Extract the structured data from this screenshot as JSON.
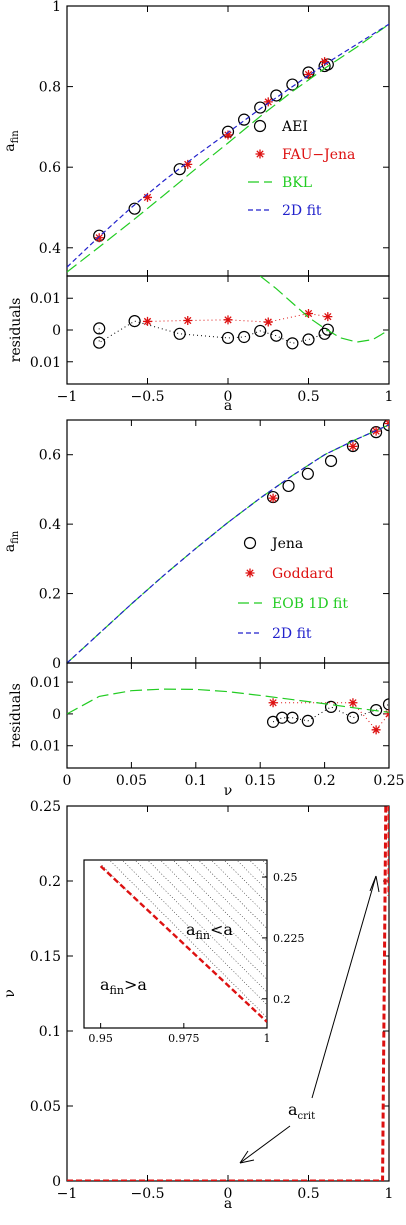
{
  "colors": {
    "black": "#000000",
    "red": "#dd1111",
    "green": "#22cc22",
    "blue": "#2222cc"
  },
  "chart_data": [
    {
      "id": "panel1",
      "type": "scatter",
      "xlim": [
        -1,
        1
      ],
      "ylim": [
        0.33,
        1
      ],
      "yticks": [
        0.4,
        0.6,
        0.8,
        1
      ],
      "ytick_labels": [
        "0.4",
        "0.6",
        "0.8",
        "1"
      ],
      "ylabel": "a_fin",
      "legend_position": "right",
      "series": [
        {
          "name": "AEI",
          "kind": "circles",
          "color": "#000000",
          "x": [
            -0.8,
            -0.58,
            -0.3,
            0.0,
            0.1,
            0.2,
            0.3,
            0.4,
            0.5,
            0.6,
            0.62
          ],
          "y": [
            0.43,
            0.497,
            0.595,
            0.688,
            0.718,
            0.748,
            0.778,
            0.805,
            0.835,
            0.851,
            0.855
          ]
        },
        {
          "name": "FAU−Jena",
          "kind": "stars",
          "color": "#dd1111",
          "x": [
            -0.8,
            -0.5,
            -0.25,
            0.0,
            0.25,
            0.5,
            0.6
          ],
          "y": [
            0.425,
            0.525,
            0.607,
            0.68,
            0.762,
            0.83,
            0.862
          ]
        },
        {
          "name": "BKL",
          "kind": "longdash",
          "color": "#22cc22",
          "x": [
            -1,
            -0.8,
            -0.6,
            -0.4,
            -0.2,
            0,
            0.2,
            0.4,
            0.6,
            0.8,
            1
          ],
          "y": [
            0.34,
            0.402,
            0.465,
            0.53,
            0.596,
            0.66,
            0.726,
            0.788,
            0.845,
            0.898,
            0.955
          ]
        },
        {
          "name": "2D fit",
          "kind": "shortdash",
          "color": "#2222cc",
          "x": [
            -1,
            -0.8,
            -0.6,
            -0.4,
            -0.2,
            0,
            0.2,
            0.4,
            0.6,
            0.8,
            1
          ],
          "y": [
            0.352,
            0.428,
            0.5,
            0.566,
            0.628,
            0.686,
            0.745,
            0.8,
            0.855,
            0.905,
            0.955
          ]
        }
      ]
    },
    {
      "id": "panel1-residuals",
      "type": "scatter",
      "xlim": [
        -1,
        1
      ],
      "ylim": [
        -0.017,
        0.017
      ],
      "xticks": [
        -1,
        -0.5,
        0,
        0.5,
        1
      ],
      "xtick_labels": [
        "−1",
        "−0.5",
        "0",
        "0.5",
        "1"
      ],
      "yticks": [
        0.01,
        0,
        -0.01
      ],
      "ytick_labels": [
        "0.01",
        "0",
        "0.01"
      ],
      "xlabel": "a",
      "ylabel": "residuals",
      "series": [
        {
          "name": "AEI residuals",
          "kind": "circles-dotted",
          "color": "#000000",
          "x": [
            -0.8,
            -0.8,
            -0.58,
            -0.3,
            0.0,
            0.1,
            0.2,
            0.3,
            0.4,
            0.5,
            0.6,
            0.62
          ],
          "y": [
            0.0005,
            -0.004,
            0.0028,
            -0.0012,
            -0.0025,
            -0.0022,
            -0.0003,
            -0.0018,
            -0.0042,
            -0.003,
            -0.0012,
            0.0001
          ]
        },
        {
          "name": "FAU−Jena residuals",
          "kind": "stars-dotted",
          "color": "#dd1111",
          "x": [
            -0.5,
            -0.25,
            0.0,
            0.25,
            0.5,
            0.62
          ],
          "y": [
            0.0027,
            0.003,
            0.0032,
            0.0025,
            0.0052,
            0.0042
          ]
        },
        {
          "name": "BKL residuals",
          "kind": "longdash",
          "color": "#22cc22",
          "x": [
            0.2,
            0.3,
            0.4,
            0.5,
            0.6,
            0.7,
            0.8,
            0.9,
            1.0
          ],
          "y": [
            0.017,
            0.013,
            0.0085,
            0.004,
            0.0005,
            -0.0025,
            -0.0038,
            -0.003,
            0.0
          ]
        }
      ]
    },
    {
      "id": "panel2",
      "type": "scatter",
      "xlim": [
        0,
        0.25
      ],
      "ylim": [
        0,
        0.7
      ],
      "yticks": [
        0,
        0.2,
        0.4,
        0.6
      ],
      "ytick_labels": [
        "0",
        "0.2",
        "0.4",
        "0.6"
      ],
      "ylabel": "a_fin",
      "legend_position": "center-right",
      "series": [
        {
          "name": "Jena",
          "kind": "circles",
          "color": "#000000",
          "x": [
            0.16,
            0.172,
            0.187,
            0.205,
            0.222,
            0.24,
            0.25
          ],
          "y": [
            0.478,
            0.51,
            0.545,
            0.582,
            0.625,
            0.665,
            0.685
          ]
        },
        {
          "name": "Goddard",
          "kind": "stars",
          "color": "#dd1111",
          "x": [
            0.16,
            0.222,
            0.24,
            0.25
          ],
          "y": [
            0.475,
            0.624,
            0.668,
            0.69
          ]
        },
        {
          "name": "EOB 1D fit",
          "kind": "longdash",
          "color": "#22cc22",
          "x": [
            0,
            0.025,
            0.05,
            0.075,
            0.1,
            0.125,
            0.15,
            0.175,
            0.2,
            0.225,
            0.25
          ],
          "y": [
            0,
            0.085,
            0.17,
            0.252,
            0.33,
            0.405,
            0.475,
            0.54,
            0.6,
            0.645,
            0.686
          ]
        },
        {
          "name": "2D fit",
          "kind": "shortdash",
          "color": "#2222cc",
          "x": [
            0,
            0.025,
            0.05,
            0.075,
            0.1,
            0.125,
            0.15,
            0.175,
            0.2,
            0.225,
            0.25
          ],
          "y": [
            0,
            0.085,
            0.17,
            0.252,
            0.33,
            0.405,
            0.475,
            0.54,
            0.6,
            0.645,
            0.686
          ]
        }
      ]
    },
    {
      "id": "panel2-residuals",
      "type": "scatter",
      "xlim": [
        0,
        0.25
      ],
      "ylim": [
        -0.017,
        0.016
      ],
      "xticks": [
        0,
        0.05,
        0.1,
        0.15,
        0.2,
        0.25
      ],
      "xtick_labels": [
        "0",
        "0.05",
        "0.1",
        "0.15",
        "0.2",
        "0.25"
      ],
      "yticks": [
        0.01,
        0,
        -0.01
      ],
      "ytick_labels": [
        "0.01",
        "0",
        "0.01"
      ],
      "xlabel": "ν",
      "ylabel": "residuals",
      "series": [
        {
          "name": "Jena residuals",
          "kind": "circles-dotted",
          "color": "#000000",
          "x": [
            0.16,
            0.167,
            0.175,
            0.187,
            0.205,
            0.222,
            0.24,
            0.25
          ],
          "y": [
            -0.0025,
            -0.0012,
            -0.0012,
            -0.0022,
            0.0022,
            -0.0012,
            0.0012,
            0.003
          ]
        },
        {
          "name": "Goddard residuals",
          "kind": "stars-dotted",
          "color": "#dd1111",
          "x": [
            0.16,
            0.222,
            0.24,
            0.25
          ],
          "y": [
            0.0035,
            0.0035,
            -0.005,
            0.0
          ]
        },
        {
          "name": "EOB 1D fit residuals",
          "kind": "longdash",
          "color": "#22cc22",
          "x": [
            0,
            0.025,
            0.05,
            0.075,
            0.1,
            0.125,
            0.15,
            0.175,
            0.2,
            0.225,
            0.25
          ],
          "y": [
            0,
            0.0055,
            0.0073,
            0.0078,
            0.0077,
            0.007,
            0.0058,
            0.0045,
            0.0032,
            0.0018,
            0.0005
          ]
        }
      ]
    },
    {
      "id": "panel3",
      "type": "line",
      "xlim": [
        -1,
        1
      ],
      "ylim": [
        0,
        0.25
      ],
      "xticks": [
        -1,
        -0.5,
        0,
        0.5,
        1
      ],
      "xtick_labels": [
        "−1",
        "−0.5",
        "0",
        "0.5",
        "1"
      ],
      "yticks": [
        0,
        0.05,
        0.1,
        0.15,
        0.2,
        0.25
      ],
      "ytick_labels": [
        "0",
        "0.05",
        "0.1",
        "0.15",
        "0.2",
        "0.25"
      ],
      "xlabel": "a",
      "ylabel": "ν",
      "annotation": "a_crit",
      "series": [
        {
          "name": "a_crit",
          "kind": "thickdash",
          "color": "#dd1111",
          "x": [
            -1,
            0.96,
            0.98,
            1.0,
            1.0
          ],
          "y": [
            0.0,
            0.0,
            0.25,
            0.25,
            0.19
          ]
        }
      ],
      "inset": {
        "xlim": [
          0.945,
          1.0
        ],
        "ylim": [
          0.188,
          0.257
        ],
        "xticks": [
          0.95,
          0.975,
          1
        ],
        "xtick_labels": [
          "0.95",
          "0.975",
          "1"
        ],
        "yticks": [
          0.2,
          0.225,
          0.25
        ],
        "ytick_labels": [
          "0.2",
          "0.225",
          "0.25"
        ],
        "line": {
          "x": [
            0.95,
            1.0
          ],
          "y": [
            0.2545,
            0.1905
          ]
        },
        "region_above": "a_fin < a",
        "region_below": "a_fin > a"
      }
    }
  ]
}
